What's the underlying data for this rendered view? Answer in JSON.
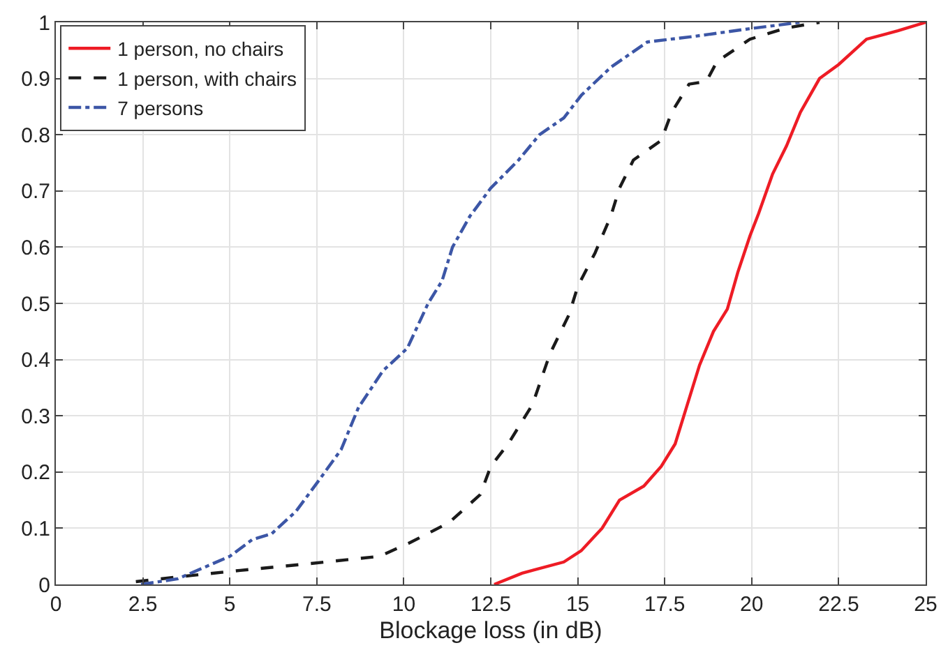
{
  "chart_data": {
    "type": "line",
    "xlabel": "Blockage loss (in dB)",
    "xlim": [
      0,
      25
    ],
    "xticks": [
      0,
      2.5,
      5,
      7.5,
      10,
      12.5,
      15,
      17.5,
      20,
      22.5,
      25
    ],
    "ylim": [
      0,
      1
    ],
    "yticks": [
      0,
      0.1,
      0.2,
      0.3,
      0.4,
      0.5,
      0.6,
      0.7,
      0.8,
      0.9,
      1
    ],
    "grid": true,
    "legend": "top left",
    "marker": "none",
    "series": [
      {
        "name": "1 person, no chairs",
        "color": "#ee1c25",
        "line_style": "solid",
        "x": [
          12.6,
          13.4,
          14.6,
          15.1,
          15.7,
          16.2,
          16.9,
          17.4,
          17.8,
          18.1,
          18.5,
          18.9,
          19.3,
          19.6,
          19.95,
          20.2,
          20.6,
          21.0,
          21.4,
          21.95,
          22.5,
          23.3,
          24.2,
          25
        ],
        "values": [
          0,
          0.02,
          0.04,
          0.06,
          0.1,
          0.15,
          0.175,
          0.21,
          0.25,
          0.31,
          0.39,
          0.45,
          0.49,
          0.555,
          0.62,
          0.66,
          0.73,
          0.78,
          0.84,
          0.9,
          0.925,
          0.97,
          0.985,
          1
        ]
      },
      {
        "name": "1 person, with chairs",
        "color": "#1a1a1a",
        "line_style": "dashed",
        "x": [
          2.3,
          3.9,
          5.3,
          7.3,
          9.3,
          10.2,
          11.3,
          12.2,
          12.5,
          13.0,
          13.7,
          14.2,
          14.75,
          15.0,
          15.5,
          15.95,
          16.2,
          16.6,
          17.4,
          17.7,
          18.2,
          18.7,
          19.0,
          19.95,
          21.0,
          21.95
        ],
        "values": [
          0.005,
          0.016,
          0.025,
          0.037,
          0.05,
          0.075,
          0.11,
          0.16,
          0.21,
          0.25,
          0.32,
          0.41,
          0.48,
          0.53,
          0.59,
          0.655,
          0.705,
          0.755,
          0.79,
          0.84,
          0.89,
          0.895,
          0.93,
          0.97,
          0.99,
          1
        ]
      },
      {
        "name": "7 persons",
        "color": "#3c56a6",
        "line_style": "dashdot",
        "x": [
          2.45,
          3.5,
          5.0,
          5.65,
          6.2,
          6.9,
          7.5,
          8.2,
          8.7,
          9.4,
          10.1,
          10.7,
          11.1,
          11.4,
          11.9,
          12.5,
          13.3,
          13.9,
          14.6,
          15.1,
          15.95,
          17.0,
          18.35,
          20.1,
          21.4
        ],
        "values": [
          0,
          0.01,
          0.05,
          0.08,
          0.09,
          0.13,
          0.18,
          0.24,
          0.315,
          0.38,
          0.42,
          0.5,
          0.54,
          0.6,
          0.655,
          0.705,
          0.755,
          0.8,
          0.83,
          0.87,
          0.92,
          0.965,
          0.975,
          0.99,
          1
        ]
      }
    ]
  }
}
